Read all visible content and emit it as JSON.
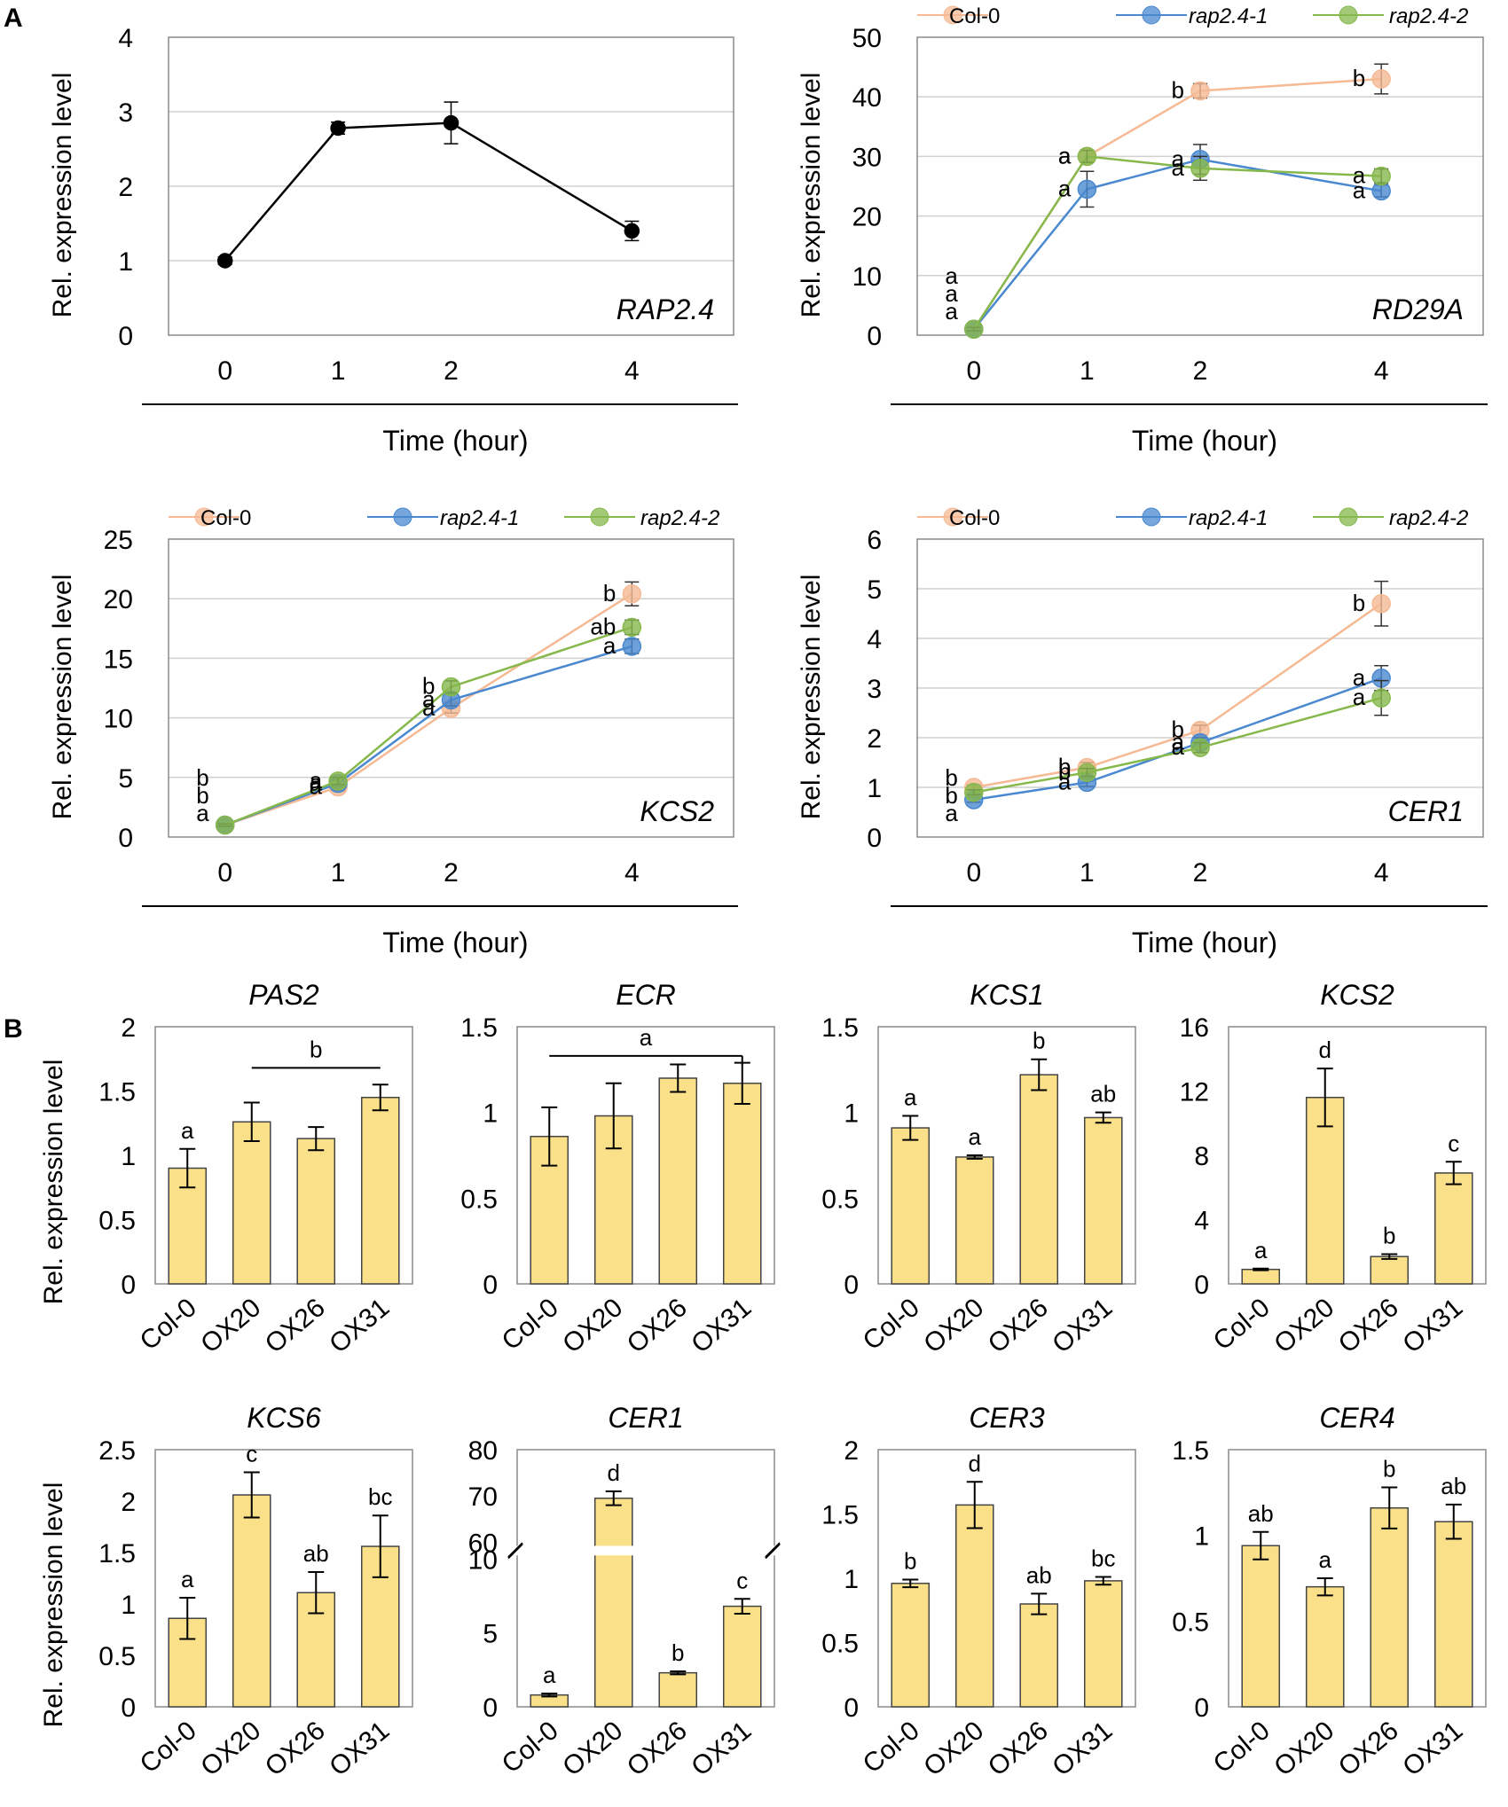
{
  "panels": {
    "a": "A",
    "b": "B"
  },
  "colors": {
    "col0": "#f5b994",
    "rap1": "#4a88d0",
    "rap2": "#86b84c",
    "bar": "#fbe08a",
    "black": "#000000",
    "grid": "#d0d0d0"
  },
  "chart_data": [
    {
      "type": "line",
      "panel": "A",
      "title": "",
      "gene": "RAP2.4",
      "xlabel": "Time (hour)",
      "ylabel": "Rel. expression level",
      "x": [
        "0",
        "1",
        "2",
        "4"
      ],
      "ylim": [
        0,
        4
      ],
      "yticks": [
        "0",
        "1",
        "2",
        "3",
        "4"
      ],
      "series": [
        {
          "name": "",
          "values": [
            1.0,
            2.78,
            2.85,
            1.4
          ],
          "errors": [
            0.05,
            0.08,
            0.28,
            0.13
          ],
          "letters": []
        }
      ]
    },
    {
      "type": "line",
      "panel": "A",
      "title": "",
      "gene": "RD29A",
      "xlabel": "Time (hour)",
      "ylabel": "Rel. expression level",
      "x": [
        "0",
        "1",
        "2",
        "4"
      ],
      "ylim": [
        0,
        50
      ],
      "yticks": [
        "0",
        "10",
        "20",
        "30",
        "40",
        "50"
      ],
      "legend": [
        "Col-0",
        "rap2.4-1",
        "rap2.4-2"
      ],
      "series": [
        {
          "name": "Col-0",
          "values": [
            1,
            30,
            41,
            43
          ],
          "errors": [
            0.3,
            1.0,
            1.2,
            2.5
          ],
          "letters": [
            "a",
            "a",
            "b",
            "b"
          ]
        },
        {
          "name": "rap2.4-1",
          "values": [
            1,
            24.5,
            29.5,
            24.2
          ],
          "errors": [
            0.3,
            3.0,
            2.5,
            1.0
          ],
          "letters": [
            "a",
            "a",
            "a",
            "a"
          ]
        },
        {
          "name": "rap2.4-2",
          "values": [
            1,
            30,
            28,
            26.7
          ],
          "errors": [
            0.3,
            1.0,
            2.0,
            1.2
          ],
          "letters": [
            "a",
            "a",
            "a",
            "a"
          ]
        }
      ]
    },
    {
      "type": "line",
      "panel": "A",
      "title": "",
      "gene": "KCS2",
      "xlabel": "Time (hour)",
      "ylabel": "Rel. expression level",
      "x": [
        "0",
        "1",
        "2",
        "4"
      ],
      "ylim": [
        0,
        25
      ],
      "yticks": [
        "0",
        "5",
        "10",
        "15",
        "20",
        "25"
      ],
      "legend": [
        "Col-0",
        "rap2.4-1",
        "rap2.4-2"
      ],
      "series": [
        {
          "name": "Col-0",
          "values": [
            1.0,
            4.2,
            10.8,
            20.4
          ],
          "errors": [
            0.1,
            0.3,
            0.4,
            1.0
          ],
          "letters": [
            "b",
            "a",
            "a",
            "b"
          ]
        },
        {
          "name": "rap2.4-1",
          "values": [
            1.0,
            4.5,
            11.5,
            16.0
          ],
          "errors": [
            0.1,
            0.3,
            0.5,
            0.6
          ],
          "letters": [
            "b",
            "a",
            "a",
            "a"
          ]
        },
        {
          "name": "rap2.4-2",
          "values": [
            1.0,
            4.7,
            12.6,
            17.6
          ],
          "errors": [
            0.1,
            0.3,
            0.5,
            0.6
          ],
          "letters": [
            "a",
            "a",
            "b",
            "ab"
          ]
        }
      ]
    },
    {
      "type": "line",
      "panel": "A",
      "title": "",
      "gene": "CER1",
      "xlabel": "Time (hour)",
      "ylabel": "Rel. expression level",
      "x": [
        "0",
        "1",
        "2",
        "4"
      ],
      "ylim": [
        0,
        6
      ],
      "yticks": [
        "0",
        "1",
        "2",
        "3",
        "4",
        "5",
        "6"
      ],
      "legend": [
        "Col-0",
        "rap2.4-1",
        "rap2.4-2"
      ],
      "series": [
        {
          "name": "Col-0",
          "values": [
            1.0,
            1.4,
            2.15,
            4.7
          ],
          "errors": [
            0.05,
            0.1,
            0.1,
            0.45
          ],
          "letters": [
            "b",
            "b",
            "b",
            "b"
          ]
        },
        {
          "name": "rap2.4-1",
          "values": [
            0.75,
            1.1,
            1.9,
            3.2
          ],
          "errors": [
            0.05,
            0.08,
            0.1,
            0.25
          ],
          "letters": [
            "a",
            "a",
            "a",
            "a"
          ]
        },
        {
          "name": "rap2.4-2",
          "values": [
            0.9,
            1.3,
            1.8,
            2.8
          ],
          "errors": [
            0.05,
            0.08,
            0.1,
            0.35
          ],
          "letters": [
            "b",
            "b",
            "a",
            "a"
          ]
        }
      ]
    },
    {
      "type": "bar",
      "panel": "B",
      "title": "PAS2",
      "ylabel": "Rel. expression level",
      "categories": [
        "Col-0",
        "OX20",
        "OX26",
        "OX31"
      ],
      "ylim": [
        0,
        2
      ],
      "yticks": [
        "0",
        "0.5",
        "1",
        "1.5",
        "2"
      ],
      "values": [
        0.9,
        1.26,
        1.13,
        1.45
      ],
      "errors": [
        0.15,
        0.15,
        0.09,
        0.1
      ],
      "letters": [
        "a",
        "",
        "",
        ""
      ],
      "bracket": {
        "from": 1,
        "to": 3,
        "value": 1.68,
        "label": "b"
      }
    },
    {
      "type": "bar",
      "panel": "B",
      "title": "ECR",
      "ylabel": "",
      "categories": [
        "Col-0",
        "OX20",
        "OX26",
        "OX31"
      ],
      "ylim": [
        0,
        1.5
      ],
      "yticks": [
        "0",
        "0.5",
        "1",
        "1.5"
      ],
      "values": [
        0.86,
        0.98,
        1.2,
        1.17
      ],
      "errors": [
        0.17,
        0.19,
        0.08,
        0.12
      ],
      "letters": [
        "",
        "",
        "",
        ""
      ],
      "bracket": {
        "from": 0,
        "to": 3,
        "value": 1.33,
        "label": "a"
      }
    },
    {
      "type": "bar",
      "panel": "B",
      "title": "KCS1",
      "ylabel": "",
      "categories": [
        "Col-0",
        "OX20",
        "OX26",
        "OX31"
      ],
      "ylim": [
        0,
        1.5
      ],
      "yticks": [
        "0",
        "0.5",
        "1",
        "1.5"
      ],
      "values": [
        0.91,
        0.74,
        1.22,
        0.97
      ],
      "errors": [
        0.07,
        0.01,
        0.09,
        0.03
      ],
      "letters": [
        "a",
        "a",
        "b",
        "ab"
      ]
    },
    {
      "type": "bar",
      "panel": "B",
      "title": "KCS2",
      "ylabel": "",
      "categories": [
        "Col-0",
        "OX20",
        "OX26",
        "OX31"
      ],
      "ylim": [
        0,
        16
      ],
      "yticks": [
        "0",
        "4",
        "8",
        "12",
        "16"
      ],
      "values": [
        0.9,
        11.6,
        1.7,
        6.9
      ],
      "errors": [
        0.05,
        1.8,
        0.15,
        0.7
      ],
      "letters": [
        "a",
        "d",
        "b",
        "c"
      ]
    },
    {
      "type": "bar",
      "panel": "B",
      "title": "KCS6",
      "ylabel": "Rel. expression level",
      "categories": [
        "Col-0",
        "OX20",
        "OX26",
        "OX31"
      ],
      "ylim": [
        0,
        2.5
      ],
      "yticks": [
        "0",
        "0.5",
        "1",
        "1.5",
        "2",
        "2.5"
      ],
      "values": [
        0.86,
        2.06,
        1.11,
        1.56
      ],
      "errors": [
        0.2,
        0.22,
        0.2,
        0.3
      ],
      "letters": [
        "a",
        "c",
        "ab",
        "bc"
      ]
    },
    {
      "type": "bar",
      "panel": "B",
      "title": "CER1",
      "ylabel": "",
      "categories": [
        "Col-0",
        "OX20",
        "OX26",
        "OX31"
      ],
      "ylim": [
        0,
        80
      ],
      "axis_break": {
        "lower": [
          0,
          10
        ],
        "upper": [
          60,
          80
        ]
      },
      "yticks": [
        "0",
        "5",
        "10",
        "60",
        "70",
        "80"
      ],
      "values": [
        0.8,
        69.5,
        2.3,
        6.8
      ],
      "errors": [
        0.1,
        1.5,
        0.1,
        0.5
      ],
      "letters": [
        "a",
        "d",
        "b",
        "c"
      ]
    },
    {
      "type": "bar",
      "panel": "B",
      "title": "CER3",
      "ylabel": "",
      "categories": [
        "Col-0",
        "OX20",
        "OX26",
        "OX31"
      ],
      "ylim": [
        0,
        2
      ],
      "yticks": [
        "0",
        "0.5",
        "1",
        "1.5",
        "2"
      ],
      "values": [
        0.96,
        1.57,
        0.8,
        0.98
      ],
      "errors": [
        0.03,
        0.18,
        0.08,
        0.03
      ],
      "letters": [
        "b",
        "d",
        "ab",
        "bc"
      ]
    },
    {
      "type": "bar",
      "panel": "B",
      "title": "CER4",
      "ylabel": "",
      "categories": [
        "Col-0",
        "OX20",
        "OX26",
        "OX31"
      ],
      "ylim": [
        0,
        1.5
      ],
      "yticks": [
        "0",
        "0.5",
        "1",
        "1.5"
      ],
      "values": [
        0.94,
        0.7,
        1.16,
        1.08
      ],
      "errors": [
        0.08,
        0.05,
        0.12,
        0.1
      ],
      "letters": [
        "ab",
        "a",
        "b",
        "ab"
      ]
    }
  ]
}
